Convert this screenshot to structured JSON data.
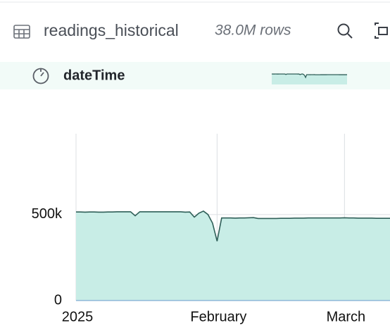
{
  "header": {
    "table_name": "readings_historical",
    "row_count": "38.0M rows"
  },
  "column": {
    "name": "dateTime"
  },
  "chart_data": {
    "type": "area",
    "categories": [
      "2025",
      null,
      null,
      null,
      null,
      null,
      null,
      null,
      null,
      null,
      null,
      null,
      null,
      null,
      null,
      null,
      null,
      null,
      null,
      null,
      null,
      null,
      null,
      null,
      null,
      null,
      null,
      null,
      null,
      null,
      null,
      "February",
      null,
      null,
      null,
      null,
      null,
      null,
      null,
      null,
      null,
      null,
      null,
      null,
      null,
      null,
      null,
      null,
      null,
      null,
      null,
      null,
      null,
      null,
      null,
      null,
      null,
      null,
      null,
      "March",
      null,
      null,
      null,
      null,
      null,
      null,
      null,
      null,
      null,
      null
    ],
    "values": [
      515000,
      515000,
      514000,
      515000,
      515000,
      514000,
      514000,
      515000,
      515000,
      516000,
      516000,
      516000,
      516000,
      493000,
      516000,
      516000,
      516000,
      516000,
      516000,
      516000,
      516000,
      516000,
      516000,
      516000,
      514000,
      515000,
      485000,
      508000,
      520000,
      500000,
      450000,
      345000,
      480000,
      480000,
      480000,
      479000,
      480000,
      480000,
      481000,
      482000,
      477000,
      477000,
      477000,
      477000,
      477000,
      478000,
      478000,
      478000,
      479000,
      479000,
      479000,
      480000,
      480000,
      480000,
      480000,
      480000,
      480000,
      480000,
      480000,
      481000,
      480000,
      480000,
      479000,
      479000,
      479000,
      479000,
      478000,
      478000,
      478000,
      478000
    ],
    "ylim": [
      0,
      970000
    ],
    "yticks": [
      0,
      {
        "value": 500000,
        "label": "500k"
      }
    ],
    "color": "#c8ede6",
    "line_color": "#2f5f58",
    "grid": true
  }
}
